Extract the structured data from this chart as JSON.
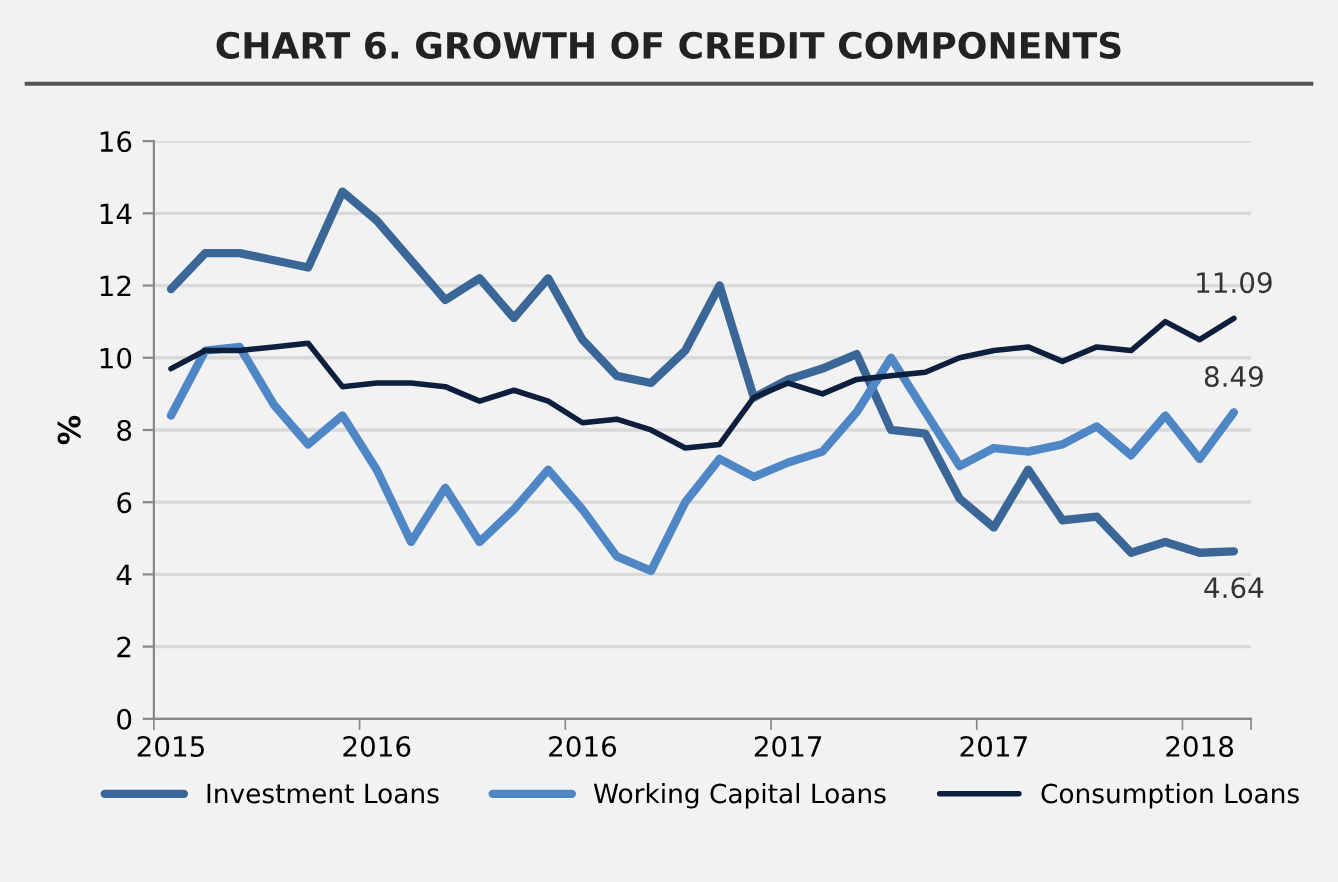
{
  "chart_data": {
    "type": "line",
    "title": "CHART 6. GROWTH OF CREDIT COMPONENTS",
    "ylabel": "%",
    "categories": [
      "2015",
      null,
      null,
      null,
      null,
      null,
      "2016",
      null,
      null,
      null,
      null,
      null,
      "2016",
      null,
      null,
      null,
      null,
      null,
      "2017",
      null,
      null,
      null,
      null,
      null,
      "2017",
      null,
      null,
      null,
      null,
      null,
      "2018",
      null
    ],
    "series": [
      {
        "name": "Investment Loans",
        "color": "#3a6798",
        "values": [
          11.9,
          12.9,
          12.9,
          12.7,
          12.5,
          14.6,
          13.8,
          12.7,
          11.6,
          12.2,
          11.1,
          12.2,
          10.5,
          9.5,
          9.3,
          10.2,
          12.0,
          8.9,
          9.4,
          9.7,
          10.1,
          8.0,
          7.9,
          6.1,
          5.3,
          6.9,
          5.5,
          5.6,
          4.6,
          4.9,
          4.6,
          4.64
        ],
        "value_labels": [
          null,
          null,
          null,
          null,
          null,
          null,
          null,
          null,
          null,
          null,
          null,
          null,
          null,
          null,
          null,
          null,
          null,
          null,
          null,
          null,
          null,
          null,
          null,
          null,
          null,
          null,
          null,
          null,
          null,
          null,
          null,
          "4.64"
        ]
      },
      {
        "name": "Working Capital Loans",
        "color": "#4f86c6",
        "values": [
          8.4,
          10.2,
          10.3,
          8.7,
          7.6,
          8.4,
          6.9,
          4.9,
          6.4,
          4.9,
          5.8,
          6.9,
          5.8,
          4.5,
          4.1,
          6.0,
          7.2,
          6.7,
          7.1,
          7.4,
          8.5,
          10.0,
          8.5,
          7.0,
          7.5,
          7.4,
          7.6,
          8.1,
          7.3,
          8.4,
          7.2,
          8.49
        ],
        "value_labels": [
          null,
          null,
          null,
          null,
          null,
          null,
          null,
          null,
          null,
          null,
          null,
          null,
          null,
          null,
          null,
          null,
          null,
          null,
          null,
          null,
          null,
          null,
          null,
          null,
          null,
          null,
          null,
          null,
          null,
          null,
          null,
          "8.49"
        ]
      },
      {
        "name": "Consumption Loans",
        "color": "#0d1f3c",
        "values": [
          9.7,
          10.2,
          10.2,
          10.3,
          10.4,
          9.2,
          9.3,
          9.3,
          9.2,
          8.8,
          9.1,
          8.8,
          8.2,
          8.3,
          8.0,
          7.5,
          7.6,
          8.9,
          9.3,
          9.0,
          9.4,
          9.5,
          9.6,
          10.0,
          10.2,
          10.3,
          9.9,
          10.3,
          10.2,
          11.0,
          10.5,
          11.09
        ],
        "value_labels": [
          null,
          null,
          null,
          null,
          null,
          null,
          null,
          null,
          null,
          null,
          null,
          null,
          null,
          null,
          null,
          null,
          null,
          null,
          null,
          null,
          null,
          null,
          null,
          null,
          null,
          null,
          null,
          null,
          null,
          null,
          null,
          "11.09"
        ]
      }
    ],
    "ylim": [
      0,
      16
    ],
    "yticks": [
      0,
      2,
      4,
      6,
      8,
      10,
      12,
      14,
      16
    ],
    "grid": "y",
    "legend": "bottom",
    "marker": "none",
    "line_style": "solid"
  }
}
